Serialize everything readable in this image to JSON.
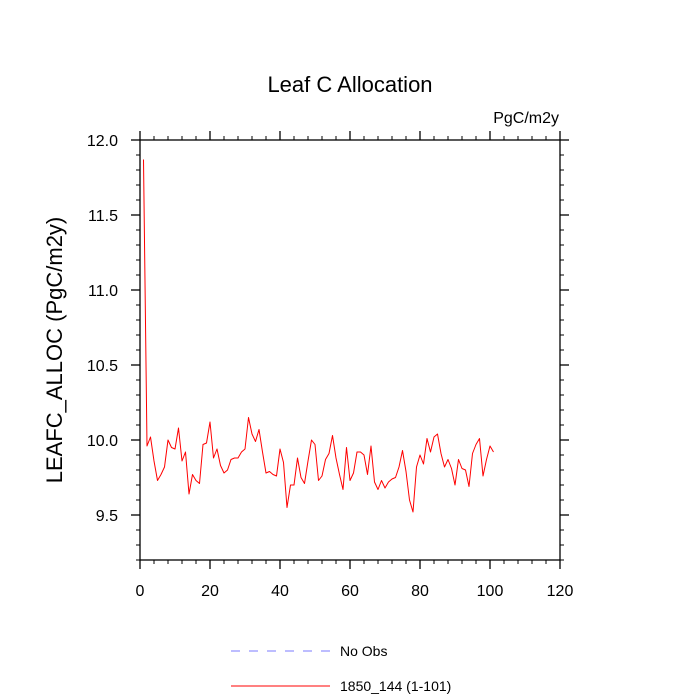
{
  "chart_data": {
    "type": "line",
    "title": "Leaf C Allocation",
    "units_label": "PgC/m2y",
    "xlabel": "",
    "ylabel": "LEAFC_ALLOC  (PgC/m2y)",
    "xlim": [
      0,
      120
    ],
    "ylim": [
      9.2,
      12.0
    ],
    "x_ticks": [
      0,
      20,
      40,
      60,
      80,
      100,
      120
    ],
    "y_ticks": [
      9.5,
      10.0,
      10.5,
      11.0,
      11.5,
      12.0
    ],
    "x_tick_labels": [
      "0",
      "20",
      "40",
      "60",
      "80",
      "100",
      "120"
    ],
    "y_tick_labels": [
      "9.5",
      "10.0",
      "10.5",
      "11.0",
      "11.5",
      "12.0"
    ],
    "legend": [
      {
        "label": "No Obs",
        "style": "dashed",
        "color": "#7b7bff"
      },
      {
        "label": "1850_144 (1-101)",
        "style": "solid",
        "color": "#ff0000"
      }
    ],
    "series": [
      {
        "name": "1850_144 (1-101)",
        "color": "#ff0000",
        "x": [
          1,
          2,
          3,
          4,
          5,
          6,
          7,
          8,
          9,
          10,
          11,
          12,
          13,
          14,
          15,
          16,
          17,
          18,
          19,
          20,
          21,
          22,
          23,
          24,
          25,
          26,
          27,
          28,
          29,
          30,
          31,
          32,
          33,
          34,
          35,
          36,
          37,
          38,
          39,
          40,
          41,
          42,
          43,
          44,
          45,
          46,
          47,
          48,
          49,
          50,
          51,
          52,
          53,
          54,
          55,
          56,
          57,
          58,
          59,
          60,
          61,
          62,
          63,
          64,
          65,
          66,
          67,
          68,
          69,
          70,
          71,
          72,
          73,
          74,
          75,
          76,
          77,
          78,
          79,
          80,
          81,
          82,
          83,
          84,
          85,
          86,
          87,
          88,
          89,
          90,
          91,
          92,
          93,
          94,
          95,
          96,
          97,
          98,
          99,
          100,
          101
        ],
        "values": [
          11.87,
          9.96,
          10.02,
          9.86,
          9.73,
          9.77,
          9.82,
          10.0,
          9.95,
          9.94,
          10.08,
          9.86,
          9.92,
          9.64,
          9.77,
          9.73,
          9.71,
          9.97,
          9.98,
          10.12,
          9.88,
          9.94,
          9.83,
          9.78,
          9.8,
          9.87,
          9.88,
          9.88,
          9.92,
          9.94,
          10.15,
          10.04,
          9.99,
          10.07,
          9.92,
          9.78,
          9.79,
          9.77,
          9.76,
          9.94,
          9.85,
          9.55,
          9.7,
          9.7,
          9.88,
          9.75,
          9.71,
          9.86,
          10.0,
          9.97,
          9.73,
          9.76,
          9.87,
          9.91,
          10.03,
          9.88,
          9.77,
          9.67,
          9.95,
          9.73,
          9.78,
          9.92,
          9.92,
          9.9,
          9.77,
          9.96,
          9.72,
          9.67,
          9.73,
          9.68,
          9.72,
          9.74,
          9.75,
          9.82,
          9.93,
          9.79,
          9.6,
          9.52,
          9.82,
          9.9,
          9.84,
          10.01,
          9.92,
          10.02,
          10.04,
          9.91,
          9.82,
          9.87,
          9.81,
          9.7,
          9.87,
          9.81,
          9.8,
          9.69,
          9.91,
          9.97,
          10.01,
          9.76,
          9.87,
          9.96,
          9.92
        ]
      }
    ]
  },
  "no_obs_series": {
    "name": "No Obs",
    "values": []
  }
}
